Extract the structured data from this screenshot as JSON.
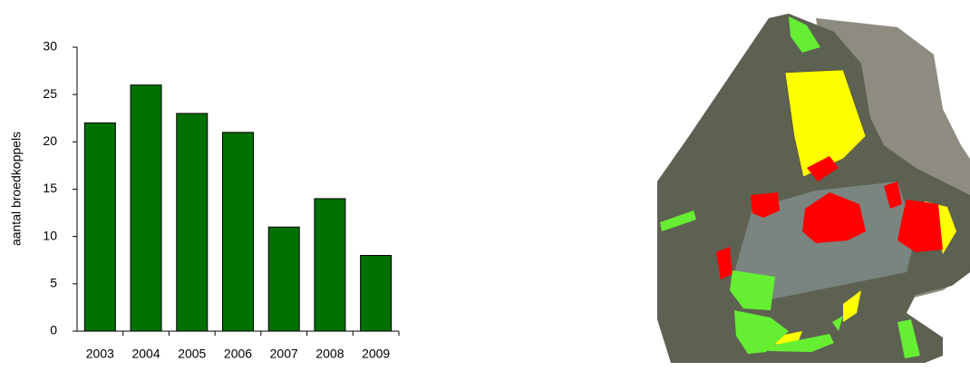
{
  "chart_data": {
    "type": "bar",
    "y_label": "aantal broedkoppels",
    "categories": [
      "2003",
      "2004",
      "2005",
      "2006",
      "2007",
      "2008",
      "2009"
    ],
    "values": [
      22,
      26,
      23,
      21,
      11,
      14,
      8
    ],
    "color": "#007000",
    "ylim": [
      0,
      30
    ],
    "yticks": [
      0,
      5,
      10,
      15,
      20,
      25,
      30
    ]
  }
}
